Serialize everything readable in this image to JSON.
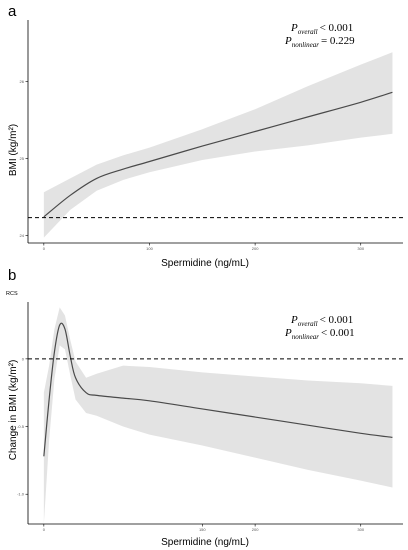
{
  "chart_data": [
    {
      "type": "line",
      "panel_label": "a",
      "xlabel": "Spermidine (ng/mL)",
      "ylabel": "BMI (kg/m²)",
      "xlim": [
        -15,
        340
      ],
      "ylim": [
        23.9,
        26.8
      ],
      "x_ticks": [
        0,
        100,
        200,
        300
      ],
      "y_ticks": [
        24,
        25,
        26
      ],
      "reference_line_y": 24.23,
      "grid": false,
      "annotations": [
        {
          "label": "P",
          "subscript": "overall",
          "value": "< 0.001"
        },
        {
          "label": "P",
          "subscript": "nonlinear",
          "value": "= 0.229"
        }
      ],
      "series": [
        {
          "x": [
            0,
            25,
            50,
            75,
            100,
            150,
            200,
            250,
            300,
            330
          ],
          "y": [
            24.24,
            24.52,
            24.74,
            24.86,
            24.96,
            25.16,
            25.35,
            25.54,
            25.73,
            25.86
          ],
          "lower": [
            23.97,
            24.33,
            24.58,
            24.72,
            24.82,
            24.98,
            25.09,
            25.17,
            25.27,
            25.32
          ],
          "upper": [
            24.56,
            24.74,
            24.92,
            25.04,
            25.14,
            25.38,
            25.64,
            25.94,
            26.22,
            26.38
          ]
        }
      ]
    },
    {
      "type": "line",
      "panel_label": "b",
      "corner_text": "RCS",
      "xlabel": "Spermidine (ng/mL)",
      "ylabel": "Change in BMI (kg/m²)",
      "xlim": [
        -15,
        340
      ],
      "ylim": [
        -1.22,
        0.42
      ],
      "x_ticks": [
        0,
        150,
        200,
        300
      ],
      "y_ticks": [
        0,
        -0.5,
        -1
      ],
      "y_tick_labels": [
        "0",
        "-0.5",
        "-1.0"
      ],
      "reference_line_y": 0,
      "grid": false,
      "annotations": [
        {
          "label": "P",
          "subscript": "overall",
          "value": "< 0.001"
        },
        {
          "label": "P",
          "subscript": "nonlinear",
          "value": "< 0.001"
        }
      ],
      "series": [
        {
          "x": [
            0,
            5,
            10,
            15,
            20,
            25,
            30,
            40,
            50,
            75,
            100,
            150,
            200,
            250,
            300,
            330
          ],
          "y": [
            -0.72,
            -0.3,
            0.05,
            0.25,
            0.22,
            0.02,
            -0.14,
            -0.25,
            -0.27,
            -0.29,
            -0.31,
            -0.37,
            -0.43,
            -0.49,
            -0.55,
            -0.58
          ],
          "lower": [
            -1.22,
            -0.6,
            -0.15,
            0.1,
            0.07,
            -0.12,
            -0.3,
            -0.4,
            -0.42,
            -0.5,
            -0.56,
            -0.64,
            -0.73,
            -0.82,
            -0.9,
            -0.95
          ],
          "upper": [
            -0.25,
            -0.05,
            0.22,
            0.38,
            0.32,
            0.14,
            -0.02,
            -0.14,
            -0.11,
            -0.05,
            -0.06,
            -0.1,
            -0.13,
            -0.16,
            -0.18,
            -0.2
          ]
        }
      ]
    }
  ]
}
